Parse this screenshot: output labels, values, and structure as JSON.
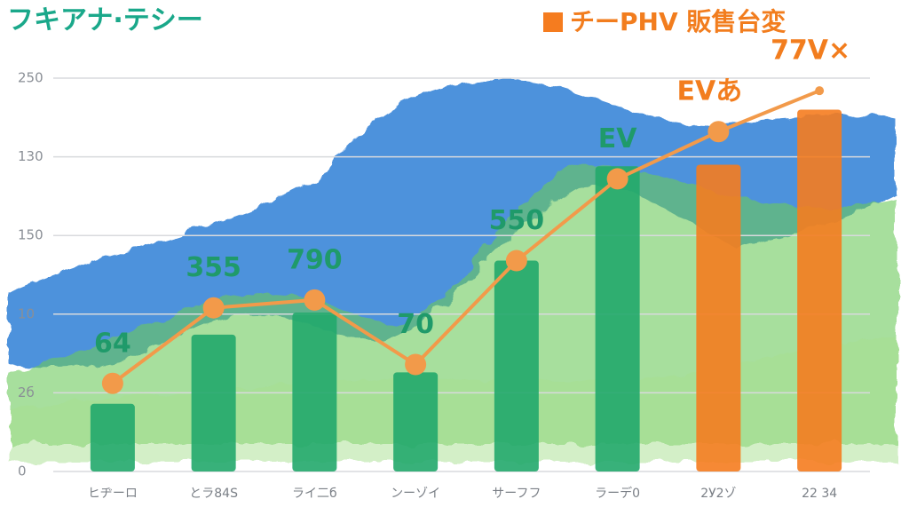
{
  "chart_data": {
    "type": "bar",
    "title": "フキアナ·テシー",
    "legend": "チーPHV 販售台変",
    "categories": [
      "ヒヂーロ",
      "とラ84S",
      "ライ二б",
      "ンーゾイ",
      "サーフフ",
      "ラーデ0",
      "2У2ゾ",
      "22 34"
    ],
    "values": [
      43,
      87,
      101,
      63,
      134,
      194,
      195,
      230
    ],
    "colors": [
      "#22a86c",
      "#22a86c",
      "#22a86c",
      "#22a86c",
      "#22a86c",
      "#22a86c",
      "#f57c1f",
      "#f57c1f"
    ],
    "line": {
      "color": "#f29a4a",
      "values": [
        56,
        104,
        109,
        68,
        134,
        186,
        216,
        242
      ]
    },
    "annotations": [
      "64",
      "355",
      "790",
      "70",
      "550",
      "EV",
      "EVあ",
      "77V×"
    ],
    "ylim": [
      0,
      250
    ],
    "yticks": [
      0,
      {
        "value": 50,
        "label": "2б"
      },
      {
        "value": 100,
        "label": "10"
      },
      150,
      {
        "value": 200,
        "label": "130"
      },
      250
    ],
    "grid": true
  }
}
